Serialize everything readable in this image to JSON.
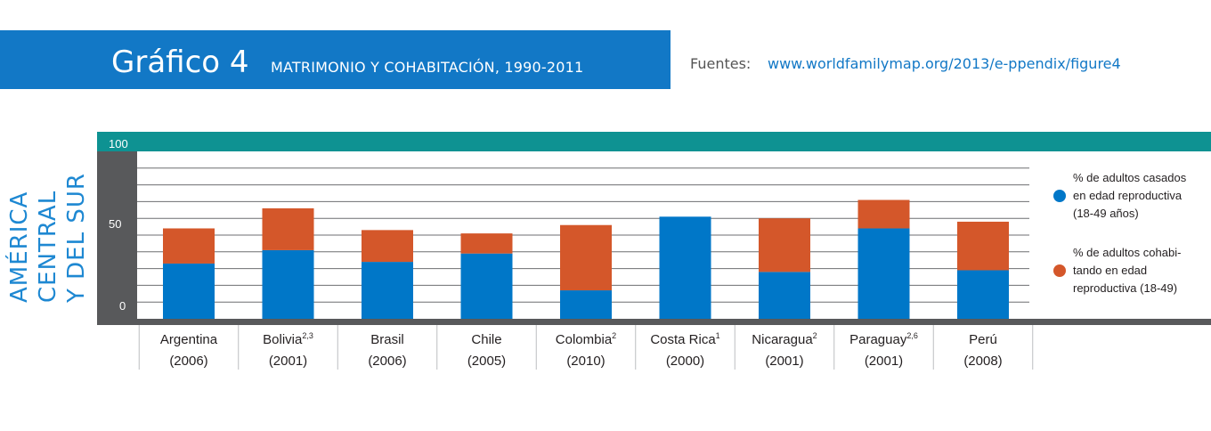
{
  "header": {
    "title": "Gráfico 4",
    "subtitle": "MATRIMONIO Y COHABITACIÓN, 1990-2011",
    "source_label": "Fuentes:",
    "source_url": "www.worldfamilymap.org/2013/e-ppendix/figure4"
  },
  "region_label": [
    "AMÉRICA",
    "CENTRAL",
    "Y DEL SUR"
  ],
  "colors": {
    "married": "#0077c8",
    "cohabiting": "#d4572a",
    "teal": "#0e9292",
    "axis": "#58595b"
  },
  "chart_data": {
    "type": "bar",
    "stacked": true,
    "ylim": [
      0,
      100
    ],
    "yticks": [
      "0",
      "50",
      "100"
    ],
    "grid": true,
    "legend_position": "right",
    "categories": [
      {
        "name": "Argentina",
        "sup": "",
        "year": "(2006)"
      },
      {
        "name": "Bolivia",
        "sup": "2,3",
        "year": "(2001)"
      },
      {
        "name": "Brasil",
        "sup": "",
        "year": "(2006)"
      },
      {
        "name": "Chile",
        "sup": "",
        "year": "(2005)"
      },
      {
        "name": "Colombia",
        "sup": "2",
        "year": "(2010)"
      },
      {
        "name": "Costa Rica",
        "sup": "1",
        "year": "(2000)"
      },
      {
        "name": "Nicaragua",
        "sup": "2",
        "year": "(2001)"
      },
      {
        "name": "Paraguay",
        "sup": "2,6",
        "year": "(2001)"
      },
      {
        "name": "Perú",
        "sup": "",
        "year": "(2008)"
      }
    ],
    "series": [
      {
        "name": "% de adultos casados en edad reproductiva (18-49 años)",
        "legend_lines": [
          "% de adultos casados",
          "en edad reproductiva",
          "(18-49 años)"
        ],
        "color": "#0077c8",
        "values": [
          33,
          41,
          34,
          39,
          17,
          61,
          28,
          54,
          29
        ]
      },
      {
        "name": "% de adultos cohabitando en edad reproductiva (18-49)",
        "legend_lines": [
          "% de adultos cohabi-",
          "tando en edad",
          "reproductiva (18-49)"
        ],
        "color": "#d4572a",
        "values": [
          21,
          25,
          19,
          12,
          39,
          0,
          32,
          17,
          29
        ]
      }
    ]
  }
}
